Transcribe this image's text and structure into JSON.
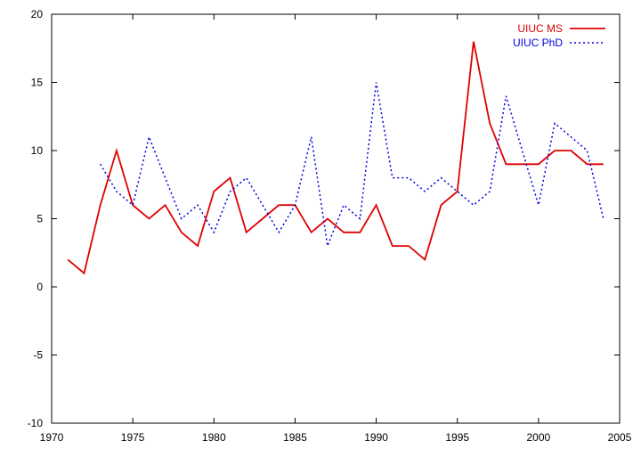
{
  "chart_data": {
    "type": "line",
    "title": "",
    "xlabel": "",
    "ylabel": "",
    "xlim": [
      1970,
      2005
    ],
    "ylim": [
      -10,
      20
    ],
    "xticks": [
      1970,
      1975,
      1980,
      1985,
      1990,
      1995,
      2000,
      2005
    ],
    "yticks": [
      -10,
      -5,
      0,
      5,
      10,
      15,
      20
    ],
    "grid": false,
    "legend_position": "top-right",
    "series": [
      {
        "name": "UIUC MS",
        "color": "#e00000",
        "dash": "solid",
        "points": [
          [
            1971,
            2
          ],
          [
            1972,
            1
          ],
          [
            1973,
            6
          ],
          [
            1974,
            10
          ],
          [
            1975,
            6
          ],
          [
            1976,
            5
          ],
          [
            1977,
            6
          ],
          [
            1978,
            4
          ],
          [
            1979,
            3
          ],
          [
            1980,
            7
          ],
          [
            1981,
            8
          ],
          [
            1982,
            4
          ],
          [
            1983,
            5
          ],
          [
            1984,
            6
          ],
          [
            1985,
            6
          ],
          [
            1986,
            4
          ],
          [
            1987,
            5
          ],
          [
            1988,
            4
          ],
          [
            1989,
            4
          ],
          [
            1990,
            6
          ],
          [
            1991,
            3
          ],
          [
            1992,
            3
          ],
          [
            1993,
            2
          ],
          [
            1994,
            6
          ],
          [
            1995,
            7
          ],
          [
            1996,
            18
          ],
          [
            1997,
            12
          ],
          [
            1998,
            9
          ],
          [
            1999,
            9
          ],
          [
            2000,
            9
          ],
          [
            2001,
            10
          ],
          [
            2002,
            10
          ],
          [
            2003,
            9
          ],
          [
            2004,
            9
          ]
        ]
      },
      {
        "name": "UIUC PhD",
        "color": "#0000e0",
        "dash": "dotted",
        "points": [
          [
            1973,
            9
          ],
          [
            1974,
            7
          ],
          [
            1975,
            6
          ],
          [
            1976,
            11
          ],
          [
            1977,
            8
          ],
          [
            1978,
            5
          ],
          [
            1979,
            6
          ],
          [
            1980,
            4
          ],
          [
            1981,
            7
          ],
          [
            1982,
            8
          ],
          [
            1983,
            6
          ],
          [
            1984,
            4
          ],
          [
            1985,
            6
          ],
          [
            1986,
            11
          ],
          [
            1987,
            3
          ],
          [
            1988,
            6
          ],
          [
            1989,
            5
          ],
          [
            1990,
            15
          ],
          [
            1991,
            8
          ],
          [
            1992,
            8
          ],
          [
            1993,
            7
          ],
          [
            1994,
            8
          ],
          [
            1995,
            7
          ],
          [
            1996,
            6
          ],
          [
            1997,
            7
          ],
          [
            1998,
            14
          ],
          [
            1999,
            10
          ],
          [
            2000,
            6
          ],
          [
            2001,
            12
          ],
          [
            2002,
            11
          ],
          [
            2003,
            10
          ],
          [
            2004,
            5
          ]
        ]
      }
    ]
  }
}
